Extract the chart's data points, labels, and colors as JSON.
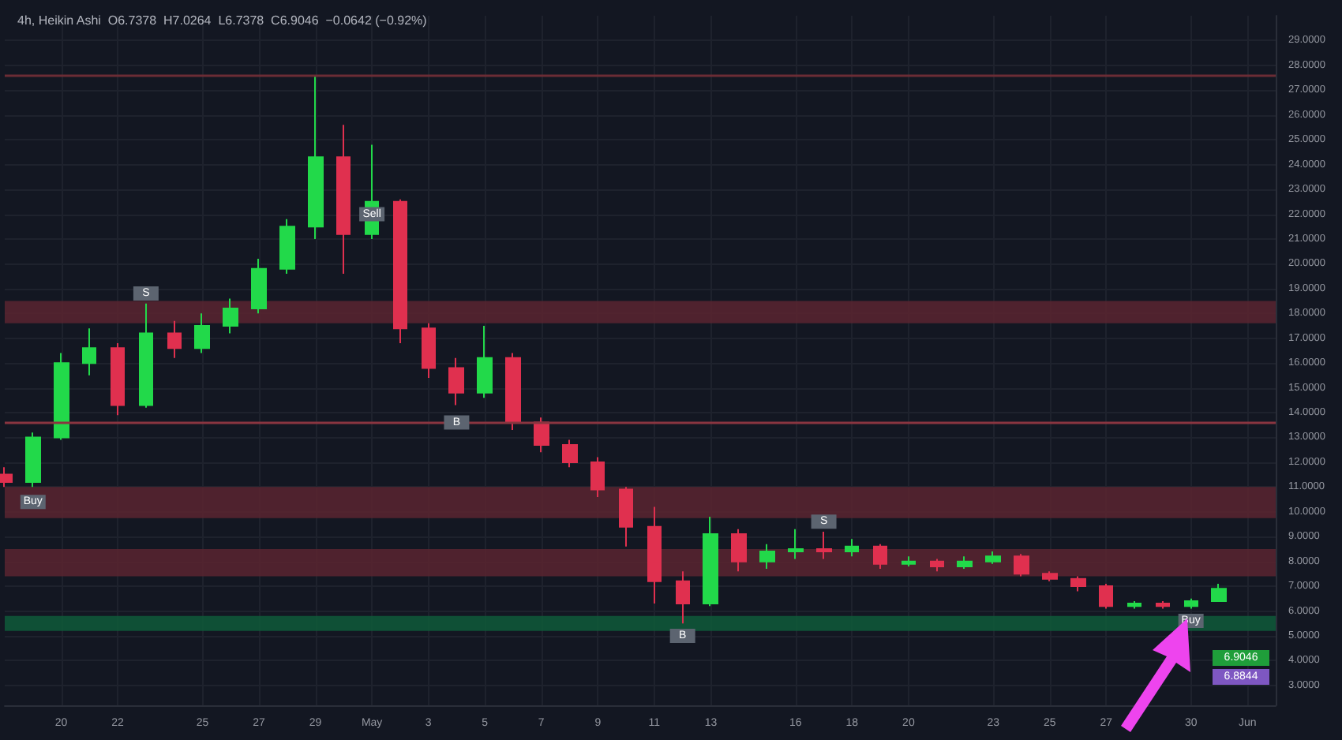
{
  "chart_data": {
    "type": "candlestick",
    "title": "4h, Heikin Ashi  O6.7378  H7.0264  L6.7378  C6.9046  −0.0642 (−0.92%)",
    "x": [
      "--04-18",
      "--04-19",
      "--04-20",
      "--04-21",
      "--04-22",
      "--04-23",
      "--04-24",
      "--04-25",
      "--04-26",
      "--04-27",
      "--04-28",
      "--04-29",
      "--04-30",
      "--05-01",
      "--05-02",
      "--05-03",
      "--05-04",
      "--05-05",
      "--05-06",
      "--05-07",
      "--05-08",
      "--05-09",
      "--05-10",
      "--05-11",
      "--05-12",
      "--05-13",
      "--05-14",
      "--05-15",
      "--05-16",
      "--05-17",
      "--05-18",
      "--05-19",
      "--05-20",
      "--05-21",
      "--05-22",
      "--05-23",
      "--05-24",
      "--05-25",
      "--05-26",
      "--05-27",
      "--05-28",
      "--05-29",
      "--05-30",
      "--05-31"
    ],
    "ohlc": [
      [
        11.5,
        11.8,
        11.0,
        11.2
      ],
      [
        11.2,
        13.2,
        11.0,
        13.0
      ],
      [
        13.0,
        16.4,
        12.9,
        16.0
      ],
      [
        16.0,
        17.4,
        15.5,
        16.6
      ],
      [
        16.6,
        16.8,
        13.9,
        14.3
      ],
      [
        14.3,
        18.4,
        14.2,
        17.2
      ],
      [
        17.2,
        17.7,
        16.2,
        16.6
      ],
      [
        16.6,
        18.0,
        16.4,
        17.5
      ],
      [
        17.5,
        18.6,
        17.2,
        18.2
      ],
      [
        18.2,
        20.2,
        18.0,
        19.8
      ],
      [
        19.8,
        21.8,
        19.6,
        21.5
      ],
      [
        21.5,
        27.6,
        21.0,
        24.3
      ],
      [
        24.3,
        25.6,
        19.6,
        21.2
      ],
      [
        21.2,
        24.8,
        21.0,
        22.5
      ],
      [
        22.5,
        22.6,
        16.8,
        17.4
      ],
      [
        17.4,
        17.6,
        15.4,
        15.8
      ],
      [
        15.8,
        16.2,
        14.3,
        14.8
      ],
      [
        14.8,
        17.5,
        14.6,
        16.2
      ],
      [
        16.2,
        16.4,
        13.3,
        13.6
      ],
      [
        13.6,
        13.8,
        12.4,
        12.7
      ],
      [
        12.7,
        12.9,
        11.8,
        12.0
      ],
      [
        12.0,
        12.2,
        10.6,
        10.9
      ],
      [
        10.9,
        11.0,
        8.6,
        9.4
      ],
      [
        9.4,
        10.2,
        6.3,
        7.2
      ],
      [
        7.2,
        7.6,
        5.5,
        6.3
      ],
      [
        6.3,
        9.8,
        6.2,
        9.1
      ],
      [
        9.1,
        9.3,
        7.6,
        8.0
      ],
      [
        8.0,
        8.7,
        7.7,
        8.4
      ],
      [
        8.4,
        9.3,
        8.1,
        8.5
      ],
      [
        8.5,
        9.2,
        8.1,
        8.4
      ],
      [
        8.4,
        8.9,
        8.2,
        8.6
      ],
      [
        8.6,
        8.7,
        7.7,
        7.9
      ],
      [
        7.9,
        8.2,
        7.8,
        8.0
      ],
      [
        8.0,
        8.1,
        7.6,
        7.8
      ],
      [
        7.8,
        8.2,
        7.7,
        8.0
      ],
      [
        8.0,
        8.4,
        7.9,
        8.2
      ],
      [
        8.2,
        8.3,
        7.4,
        7.5
      ],
      [
        7.5,
        7.6,
        7.2,
        7.3
      ],
      [
        7.3,
        7.4,
        6.8,
        7.0
      ],
      [
        7.0,
        7.1,
        6.1,
        6.2
      ],
      [
        6.2,
        6.4,
        6.1,
        6.3
      ],
      [
        6.3,
        6.4,
        6.1,
        6.2
      ],
      [
        6.2,
        6.5,
        6.1,
        6.4
      ],
      [
        6.4,
        7.1,
        6.4,
        6.9
      ]
    ],
    "colors": [
      "#e0304f",
      "#22d94a",
      "#22d94a",
      "#22d94a",
      "#e0304f",
      "#22d94a",
      "#e0304f",
      "#22d94a",
      "#22d94a",
      "#22d94a",
      "#22d94a",
      "#22d94a",
      "#e0304f",
      "#22d94a",
      "#e0304f",
      "#e0304f",
      "#e0304f",
      "#22d94a",
      "#e0304f",
      "#e0304f",
      "#e0304f",
      "#e0304f",
      "#e0304f",
      "#e0304f",
      "#e0304f",
      "#22d94a",
      "#e0304f",
      "#22d94a",
      "#22d94a",
      "#e0304f",
      "#22d94a",
      "#e0304f",
      "#22d94a",
      "#e0304f",
      "#22d94a",
      "#22d94a",
      "#e0304f",
      "#e0304f",
      "#e0304f",
      "#e0304f",
      "#22d94a",
      "#e0304f",
      "#22d94a",
      "#22d94a"
    ],
    "xlim": [
      "--04-18",
      "--06-02"
    ],
    "xticks": [
      {
        "value": "--04-20",
        "label": "20"
      },
      {
        "value": "--04-22",
        "label": "22"
      },
      {
        "value": "--04-25",
        "label": "25"
      },
      {
        "value": "--04-27",
        "label": "27"
      },
      {
        "value": "--04-29",
        "label": "29"
      },
      {
        "value": "--05-01",
        "label": "May"
      },
      {
        "value": "--05-03",
        "label": "3"
      },
      {
        "value": "--05-05",
        "label": "5"
      },
      {
        "value": "--05-07",
        "label": "7"
      },
      {
        "value": "--05-09",
        "label": "9"
      },
      {
        "value": "--05-11",
        "label": "11"
      },
      {
        "value": "--05-13",
        "label": "13"
      },
      {
        "value": "--05-16",
        "label": "16"
      },
      {
        "value": "--05-18",
        "label": "18"
      },
      {
        "value": "--05-20",
        "label": "20"
      },
      {
        "value": "--05-23",
        "label": "23"
      },
      {
        "value": "--05-25",
        "label": "25"
      },
      {
        "value": "--05-27",
        "label": "27"
      },
      {
        "value": "--05-30",
        "label": "30"
      },
      {
        "value": "--06-01",
        "label": "Jun"
      }
    ],
    "ylim": [
      2.2,
      30
    ],
    "yticks": [
      {
        "value": 3,
        "label": "3.0000"
      },
      {
        "value": 4,
        "label": "4.0000"
      },
      {
        "value": 5,
        "label": "5.0000"
      },
      {
        "value": 6,
        "label": "6.0000"
      },
      {
        "value": 7,
        "label": "7.0000"
      },
      {
        "value": 8,
        "label": "8.0000"
      },
      {
        "value": 9,
        "label": "9.0000"
      },
      {
        "value": 10,
        "label": "10.0000"
      },
      {
        "value": 11,
        "label": "11.0000"
      },
      {
        "value": 12,
        "label": "12.0000"
      },
      {
        "value": 13,
        "label": "13.0000"
      },
      {
        "value": 14,
        "label": "14.0000"
      },
      {
        "value": 15,
        "label": "15.0000"
      },
      {
        "value": 16,
        "label": "16.0000"
      },
      {
        "value": 17,
        "label": "17.0000"
      },
      {
        "value": 18,
        "label": "18.0000"
      },
      {
        "value": 19,
        "label": "19.0000"
      },
      {
        "value": 20,
        "label": "20.0000"
      },
      {
        "value": 21,
        "label": "21.0000"
      },
      {
        "value": 22,
        "label": "22.0000"
      },
      {
        "value": 23,
        "label": "23.0000"
      },
      {
        "value": 24,
        "label": "24.0000"
      },
      {
        "value": 25,
        "label": "25.0000"
      },
      {
        "value": 26,
        "label": "26.0000"
      },
      {
        "value": 27,
        "label": "27.0000"
      },
      {
        "value": 28,
        "label": "28.0000"
      },
      {
        "value": 29,
        "label": "29.0000"
      }
    ],
    "grid": true,
    "ref_lines": [
      {
        "axis": "y",
        "value": 27.6,
        "label": null,
        "color": "#6b2c35"
      },
      {
        "axis": "y",
        "value": 13.6,
        "label": null,
        "color": "#8a3540"
      }
    ],
    "bands": [
      {
        "axis": "y",
        "from": 17.6,
        "to": 18.5,
        "label": null,
        "color": "#5a2530"
      },
      {
        "axis": "y",
        "from": 9.75,
        "to": 11.0,
        "label": null,
        "color": "#5a2530"
      },
      {
        "axis": "y",
        "from": 7.4,
        "to": 8.5,
        "label": null,
        "color": "#5a2530"
      },
      {
        "axis": "y",
        "from": 5.2,
        "to": 5.8,
        "label": null,
        "color": "#0f5a3a"
      }
    ],
    "annotations": [
      {
        "text": "Buy",
        "x": "--04-19",
        "y": 10.4
      },
      {
        "text": "S",
        "x": "--04-23",
        "y": 18.8
      },
      {
        "text": "Sell",
        "x": "--05-01",
        "y": 22.0
      },
      {
        "text": "B",
        "x": "--05-04",
        "y": 13.6
      },
      {
        "text": "B",
        "x": "--05-12",
        "y": 5.0
      },
      {
        "text": "S",
        "x": "--05-17",
        "y": 9.6
      },
      {
        "text": "Buy",
        "x": "--05-30",
        "y": 5.6
      },
      "6.9046",
      "6.8844"
    ]
  }
}
